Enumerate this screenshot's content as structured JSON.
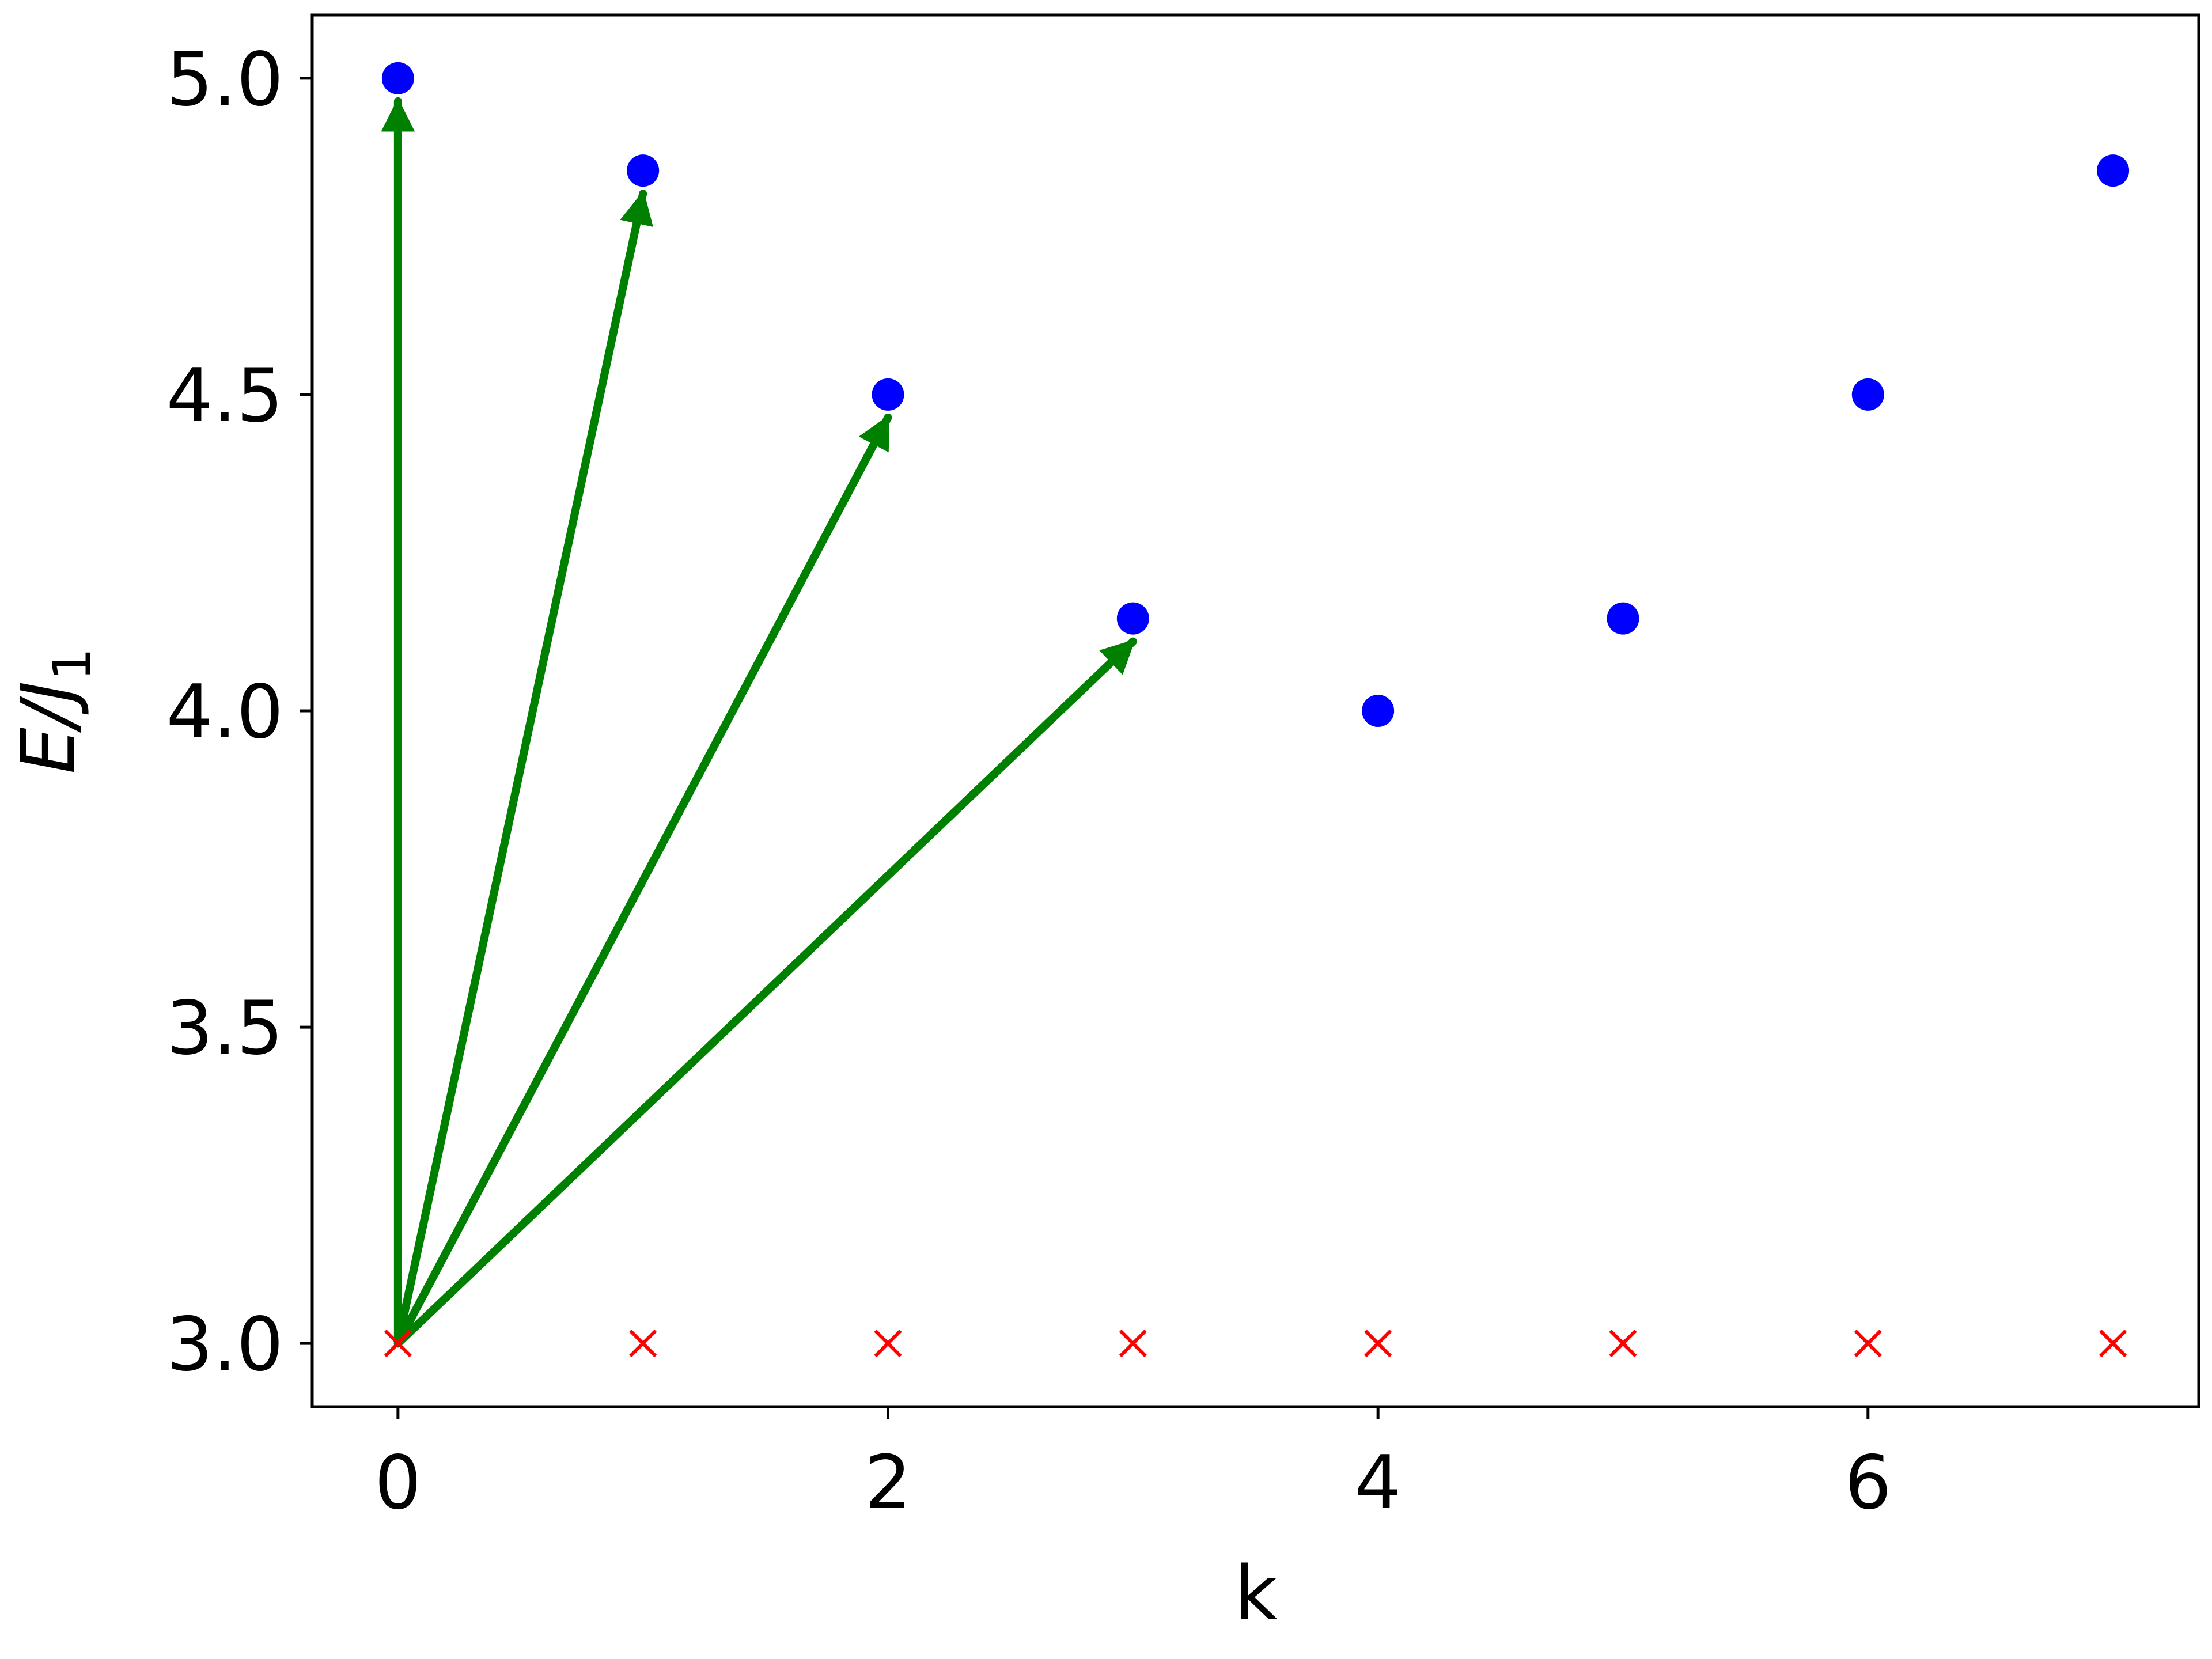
{
  "chart_data": {
    "type": "scatter",
    "title": "",
    "xlabel": "k",
    "ylabel": {
      "main": "E/J",
      "sub": "1"
    },
    "xlim": [
      -0.35,
      7.35
    ],
    "ylim": [
      2.9,
      5.1
    ],
    "xticks": [
      0,
      2,
      4,
      6
    ],
    "xtick_labels": [
      "0",
      "2",
      "4",
      "6"
    ],
    "yticks": [
      3.0,
      3.5,
      4.0,
      4.5,
      5.0
    ],
    "ytick_labels": [
      "3.0",
      "3.5",
      "4.0",
      "4.5",
      "5.0"
    ],
    "grid": false,
    "legend": null,
    "series": [
      {
        "marker": "circle",
        "color": "#0000ff",
        "x": [
          0,
          1,
          2,
          3,
          4,
          5,
          6,
          7
        ],
        "y": [
          5.0,
          4.854,
          4.5,
          4.146,
          4.0,
          4.146,
          4.5,
          4.854
        ]
      },
      {
        "marker": "x",
        "color": "#ff0000",
        "x": [
          0,
          1,
          2,
          3,
          4,
          5,
          6,
          7
        ],
        "y": [
          3.0,
          3.0,
          3.0,
          3.0,
          3.0,
          3.0,
          3.0,
          3.0
        ]
      }
    ],
    "arrows": {
      "color": "#008000",
      "from": [
        0,
        3.0
      ],
      "to": [
        [
          0,
          5.0
        ],
        [
          1,
          4.854
        ],
        [
          2,
          4.5
        ],
        [
          3,
          4.146
        ]
      ]
    }
  }
}
